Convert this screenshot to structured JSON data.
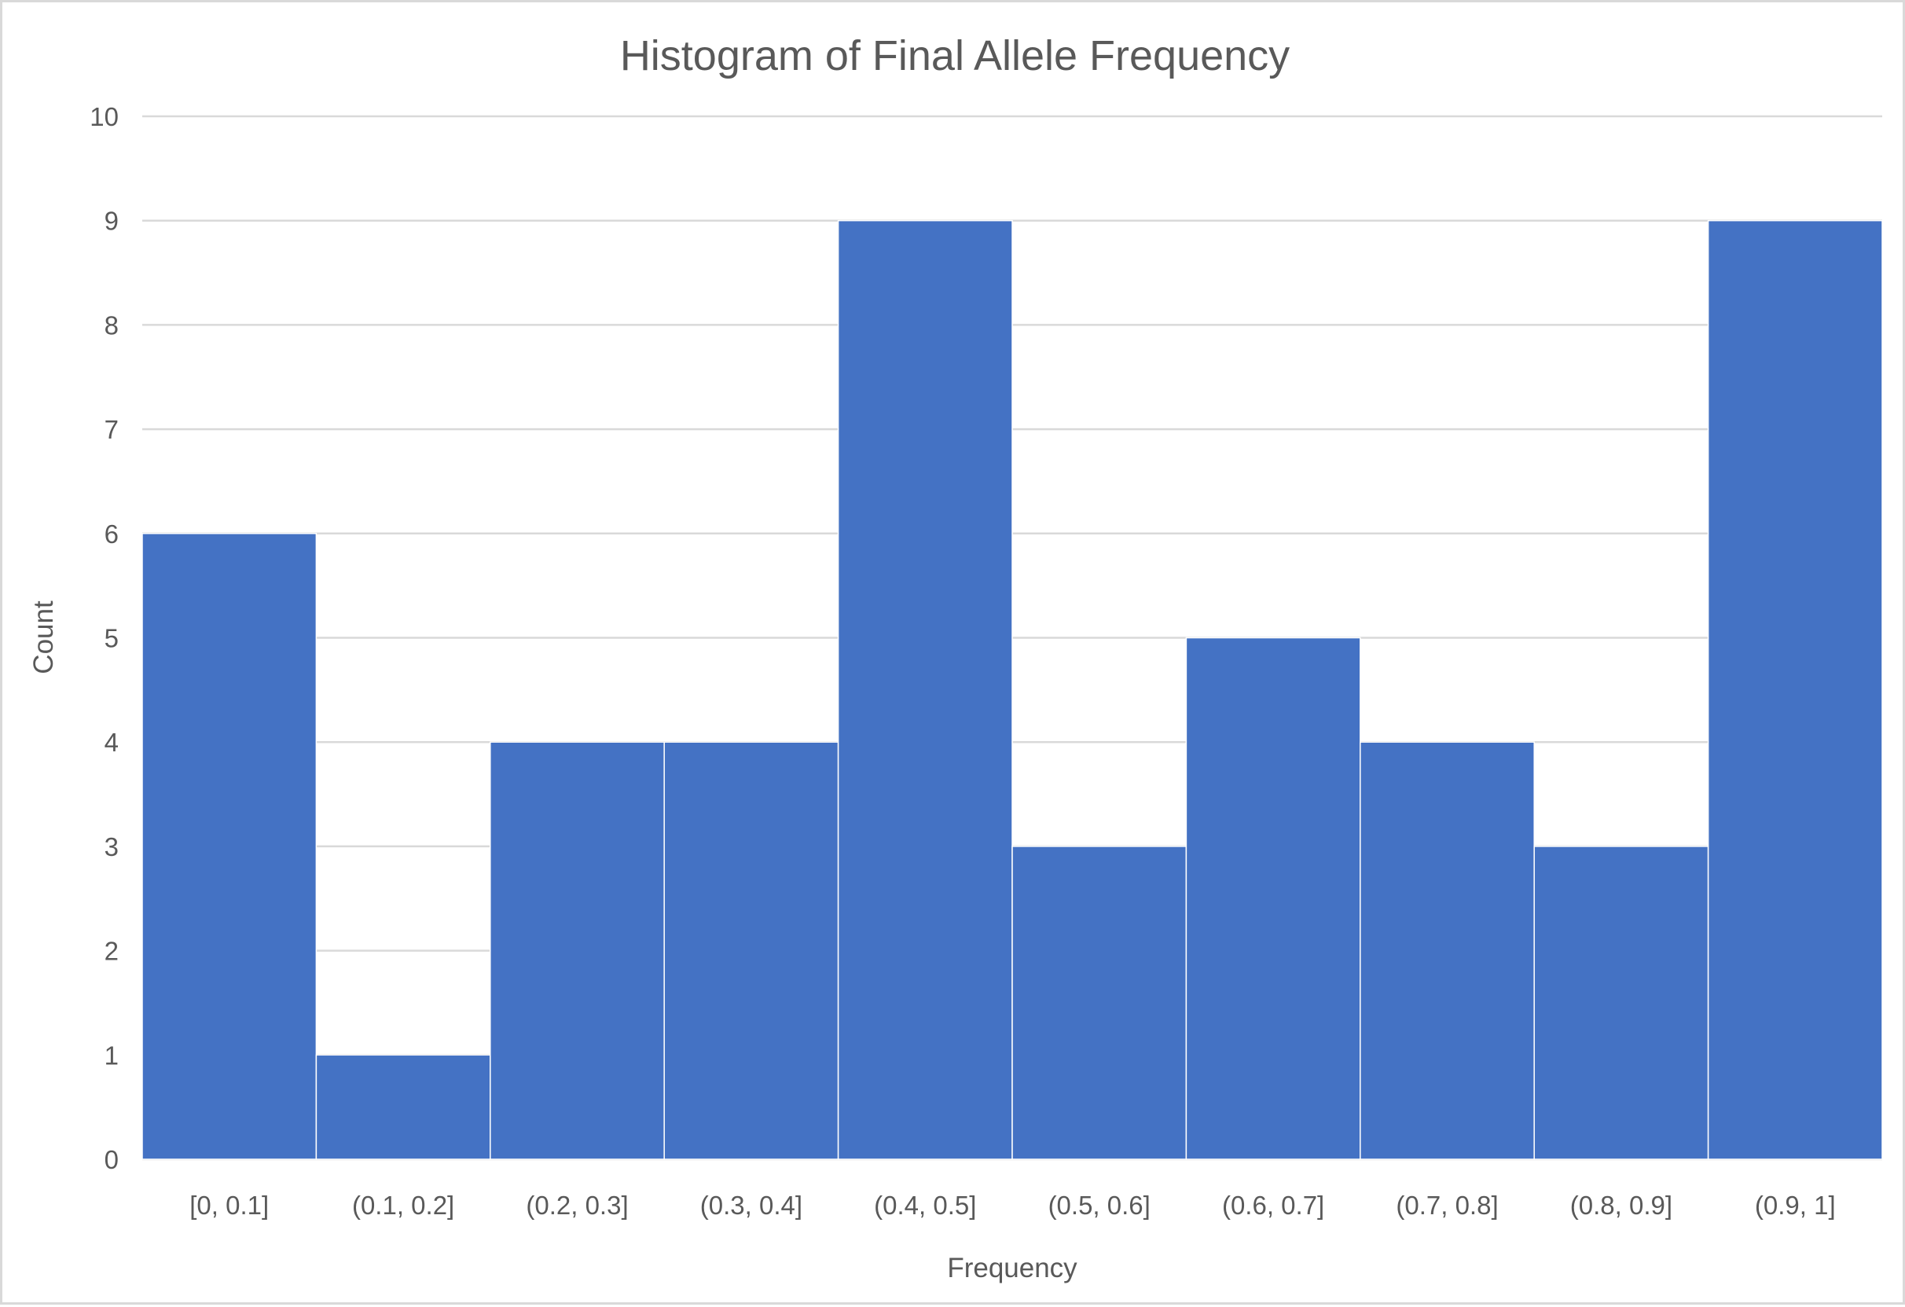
{
  "chart_data": {
    "type": "bar",
    "title": "Histogram of Final Allele Frequency",
    "xlabel": "Frequency",
    "ylabel": "Count",
    "categories": [
      "[0, 0.1]",
      "(0.1, 0.2]",
      "(0.2, 0.3]",
      "(0.3, 0.4]",
      "(0.4, 0.5]",
      "(0.5, 0.6]",
      "(0.6, 0.7]",
      "(0.7, 0.8]",
      "(0.8, 0.9]",
      "(0.9, 1]"
    ],
    "values": [
      6,
      1,
      4,
      4,
      9,
      3,
      5,
      4,
      3,
      9
    ],
    "ylim": [
      0,
      10
    ],
    "yticks": [
      0,
      1,
      2,
      3,
      4,
      5,
      6,
      7,
      8,
      9,
      10
    ],
    "grid": true,
    "legend": "none",
    "bar_color": "#4472C4",
    "gridline_color": "#d9d9d9",
    "text_color": "#595959"
  }
}
